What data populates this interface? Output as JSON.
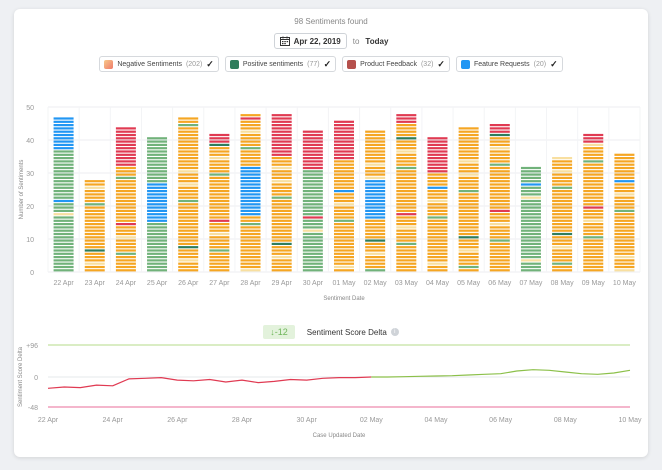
{
  "header": {
    "count_text": "98 Sentiments found"
  },
  "date_range": {
    "from": "Apr 22, 2019",
    "to_label": "to",
    "to_value": "Today"
  },
  "legend": [
    {
      "label": "Negative Sentiments",
      "count": "(202)",
      "color": "#f08a75",
      "icon": "check-icon"
    },
    {
      "label": "Positive sentiments",
      "count": "(77)",
      "color": "#2f7d5c",
      "icon": "check-icon"
    },
    {
      "label": "Product Feedback",
      "count": "(32)",
      "color": "#b5504c",
      "icon": "check-icon"
    },
    {
      "label": "Feature Requests",
      "count": "(20)",
      "color": "#2196f3",
      "icon": "check-icon"
    }
  ],
  "colors": {
    "orange": "#f5a623",
    "red": "#e03a52",
    "green": "#71b27a",
    "blue": "#2196f3",
    "pale": "#f8dfa0",
    "teal": "#2f7d5c",
    "line_red": "#e03a52",
    "line_green": "#8cc04a",
    "ref_green": "#b6db8a",
    "ref_pink": "#e86c9a"
  },
  "chart_data": [
    {
      "type": "bar",
      "stacked": true,
      "xlabel": "Sentiment Date",
      "ylabel": "Number of Sentiments",
      "ylim": [
        0,
        50
      ],
      "yticks": [
        0,
        10,
        20,
        30,
        40,
        50
      ],
      "grid": true,
      "categories": [
        "22 Apr",
        "23 Apr",
        "24 Apr",
        "25 Apr",
        "26 Apr",
        "27 Apr",
        "28 Apr",
        "29 Apr",
        "30 Apr",
        "01 May",
        "02 May",
        "03 May",
        "04 May",
        "05 May",
        "06 May",
        "07 May",
        "08 May",
        "09 May",
        "10 May"
      ],
      "values": [
        47,
        28,
        44,
        41,
        47,
        42,
        48,
        48,
        43,
        46,
        43,
        48,
        41,
        44,
        45,
        32,
        35,
        42,
        36
      ],
      "dominant_color": [
        "green",
        "orange",
        "orange",
        "green",
        "orange",
        "orange",
        "orange",
        "orange",
        "green",
        "orange",
        "orange",
        "orange",
        "orange",
        "orange",
        "orange",
        "green",
        "orange",
        "orange",
        "orange"
      ]
    },
    {
      "type": "line",
      "title": "Sentiment Score Delta",
      "badge": "↓-12",
      "xlabel": "Case Updated Date",
      "ylabel": "Sentiment Score Delta",
      "ylim": [
        -48,
        96
      ],
      "yticks": [
        "+96",
        "0",
        "-48"
      ],
      "xticks": [
        "22 Apr",
        "24 Apr",
        "26 Apr",
        "28 Apr",
        "30 Apr",
        "02 May",
        "04 May",
        "06 May",
        "08 May",
        "10 May"
      ],
      "x": [
        0,
        0.5,
        1,
        1.5,
        2,
        2.5,
        3,
        3.5,
        4,
        4.5,
        5,
        5.5,
        6,
        6.5,
        7,
        7.5,
        8,
        8.5,
        9,
        9.5,
        10,
        10.5,
        11,
        11.5,
        12,
        12.5,
        13,
        13.5,
        14,
        14.5,
        15,
        15.5,
        16,
        16.5,
        17,
        17.5,
        18
      ],
      "y": [
        -18,
        -16,
        -17,
        -13,
        -14,
        -3,
        -2,
        -1,
        -5,
        -6,
        -4,
        -8,
        -5,
        -9,
        -7,
        -4,
        -5,
        -2,
        -1,
        -1,
        0,
        0,
        1,
        2,
        3,
        4,
        6,
        8,
        10,
        18,
        22,
        20,
        15,
        10,
        8,
        12,
        20
      ]
    }
  ]
}
